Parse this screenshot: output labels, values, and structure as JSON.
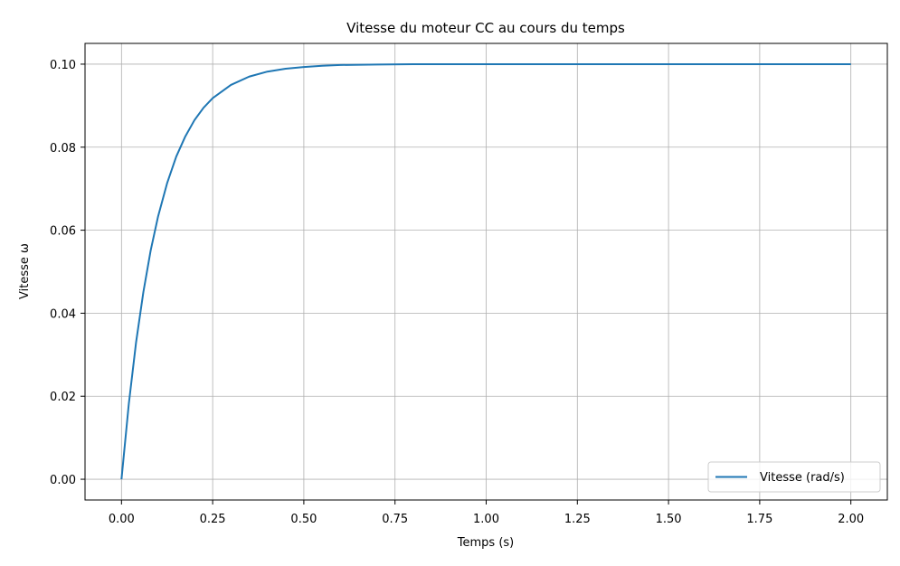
{
  "chart_data": {
    "type": "line",
    "title": "Vitesse du moteur CC au cours du temps",
    "xlabel": "Temps (s)",
    "ylabel": "Vitesse ω",
    "xlim": [
      -0.1,
      2.1
    ],
    "ylim": [
      -0.005,
      0.105
    ],
    "grid": true,
    "legend_placement": "lower-right",
    "x_ticks": [
      "0.00",
      "0.25",
      "0.50",
      "0.75",
      "1.00",
      "1.25",
      "1.50",
      "1.75",
      "2.00"
    ],
    "y_ticks": [
      "0.00",
      "0.02",
      "0.04",
      "0.06",
      "0.08",
      "0.10"
    ],
    "series": [
      {
        "name": "Vitesse (rad/s)",
        "color": "#1f77b4",
        "x": [
          0,
          0.02,
          0.04,
          0.06,
          0.08,
          0.1,
          0.125,
          0.15,
          0.175,
          0.2,
          0.225,
          0.25,
          0.3,
          0.35,
          0.4,
          0.45,
          0.5,
          0.55,
          0.6,
          0.7,
          0.8,
          1.0,
          1.25,
          1.5,
          1.75,
          2.0
        ],
        "y": [
          0,
          0.0181,
          0.033,
          0.0451,
          0.0551,
          0.0632,
          0.0713,
          0.0777,
          0.0826,
          0.0865,
          0.0895,
          0.0918,
          0.095,
          0.097,
          0.0982,
          0.0989,
          0.0993,
          0.0996,
          0.0998,
          0.0999,
          0.1,
          0.1,
          0.1,
          0.1,
          0.1,
          0.1
        ]
      }
    ]
  }
}
